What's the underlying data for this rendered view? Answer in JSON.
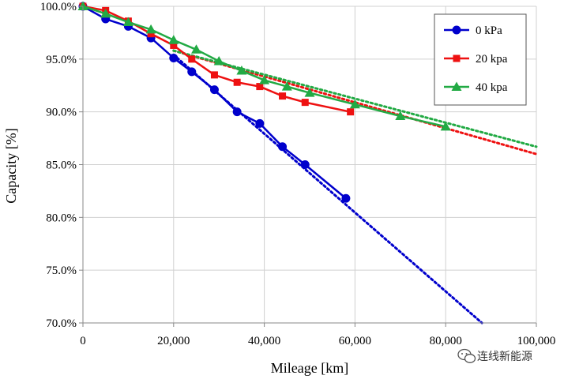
{
  "chart_data": {
    "type": "line",
    "title": "",
    "xlabel": "Mileage  [km]",
    "ylabel": "Capacity [%]",
    "xlim": [
      0,
      100000
    ],
    "ylim": [
      70,
      100
    ],
    "grid": true,
    "legend_position": "top-right",
    "xticks": [
      0,
      20000,
      40000,
      60000,
      80000,
      100000
    ],
    "xtick_labels": [
      "0",
      "20,000",
      "40,000",
      "60,000",
      "80,000",
      "100,000"
    ],
    "yticks": [
      70,
      75,
      80,
      85,
      90,
      95,
      100
    ],
    "ytick_labels": [
      "70.0%",
      "75.0%",
      "80.0%",
      "85.0%",
      "90.0%",
      "95.0%",
      "100.0%"
    ],
    "series": [
      {
        "name": "0 kPa",
        "color": "#0000cc",
        "marker": "circle",
        "x": [
          0,
          5000,
          10000,
          15000,
          20000,
          24000,
          29000,
          34000,
          39000,
          44000,
          49000,
          58000
        ],
        "y": [
          100,
          98.8,
          98.1,
          97.0,
          95.1,
          93.8,
          92.1,
          90.0,
          88.9,
          86.7,
          85.0,
          81.8
        ],
        "trend": {
          "x": [
            20000,
            88000
          ],
          "y": [
            95.4,
            70
          ]
        }
      },
      {
        "name": "20 kpa",
        "color": "#ee1111",
        "marker": "square",
        "x": [
          0,
          5000,
          10000,
          15000,
          20000,
          24000,
          29000,
          34000,
          39000,
          44000,
          49000,
          59000
        ],
        "y": [
          100,
          99.6,
          98.6,
          97.4,
          96.3,
          95.0,
          93.5,
          92.8,
          92.4,
          91.5,
          90.9,
          90.0
        ],
        "trend": {
          "x": [
            20000,
            100000
          ],
          "y": [
            95.8,
            86.0
          ]
        }
      },
      {
        "name": "40 kpa",
        "color": "#22aa44",
        "marker": "triangle",
        "x": [
          0,
          5000,
          10000,
          15000,
          20000,
          25000,
          30000,
          35000,
          40000,
          45000,
          50000,
          60000,
          70000,
          80000
        ],
        "y": [
          100,
          99.3,
          98.5,
          97.8,
          96.8,
          95.9,
          94.8,
          93.9,
          93.0,
          92.4,
          91.8,
          90.7,
          89.6,
          88.6
        ],
        "trend": {
          "x": [
            20000,
            100000
          ],
          "y": [
            95.8,
            86.7
          ]
        }
      }
    ]
  },
  "watermark": {
    "icon": "wechat-icon",
    "text": "连线新能源"
  }
}
